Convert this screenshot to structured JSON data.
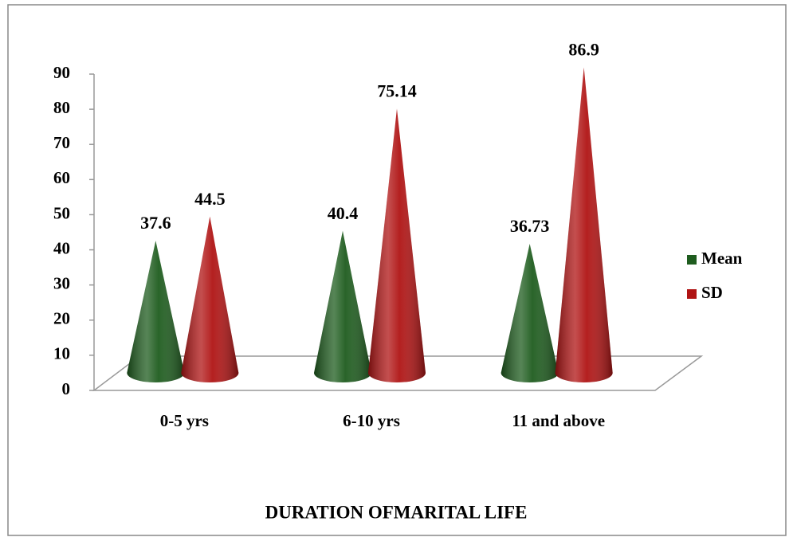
{
  "chart_data": {
    "type": "cone",
    "x_label": "DURATION OFMARITAL LIFE",
    "categories": [
      "0-5 yrs",
      "6-10 yrs",
      "11 and above"
    ],
    "series": [
      {
        "name": "Mean",
        "color": "#1e5c1e",
        "values": [
          37.6,
          40.4,
          36.73
        ]
      },
      {
        "name": "SD",
        "color": "#b01414",
        "values": [
          44.5,
          75.14,
          86.9
        ]
      }
    ],
    "ylim": [
      0,
      90
    ],
    "yticks": [
      0,
      10,
      20,
      30,
      40,
      50,
      60,
      70,
      80,
      90
    ],
    "legend": "right"
  }
}
